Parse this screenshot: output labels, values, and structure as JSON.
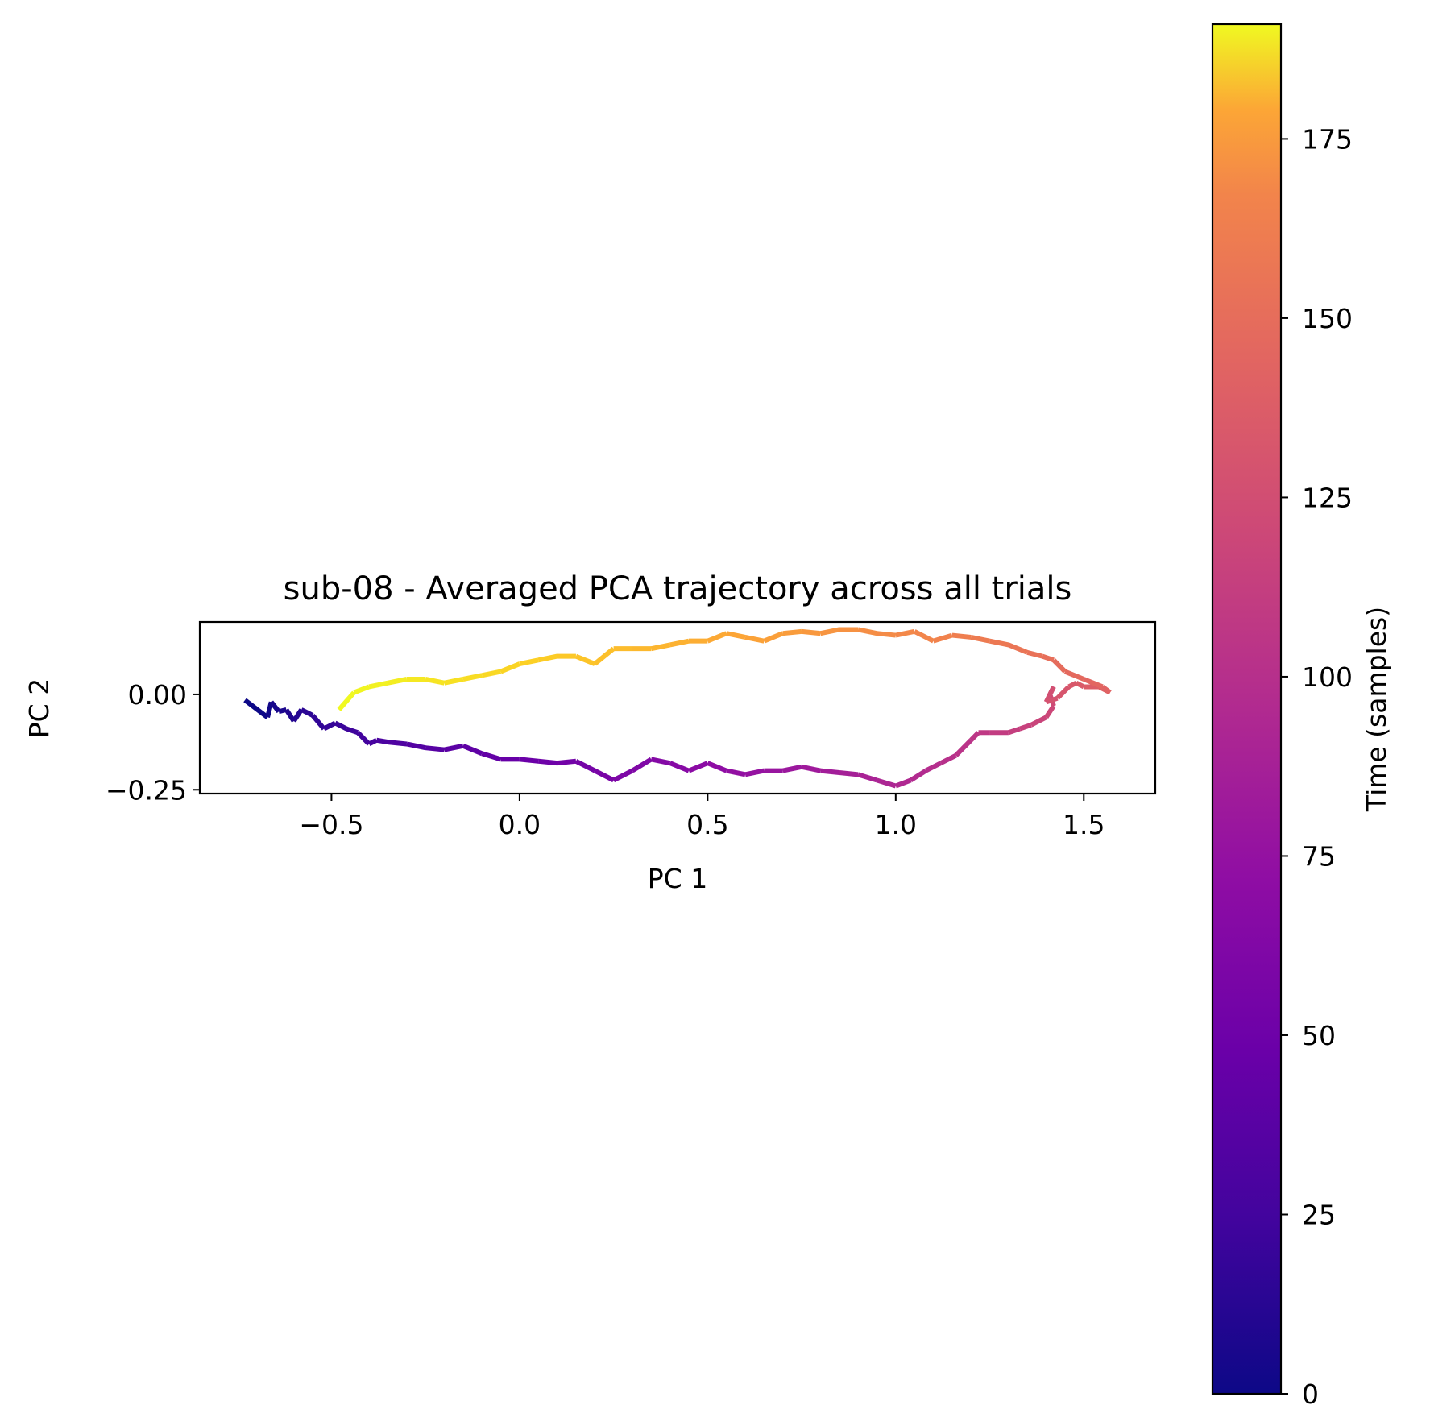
{
  "chart_data": {
    "type": "line",
    "title": "sub-08 - Averaged PCA trajectory across all trials",
    "xlabel": "PC 1",
    "ylabel": "PC 2",
    "xlim": [
      -0.85,
      1.69
    ],
    "ylim": [
      -0.26,
      0.19
    ],
    "xticks": [
      -0.5,
      0.0,
      0.5,
      1.0,
      1.5
    ],
    "xtick_labels": [
      "−0.5",
      "0.0",
      "0.5",
      "1.0",
      "1.5"
    ],
    "yticks": [
      0.0,
      -0.25
    ],
    "ytick_labels": [
      "0.00",
      "−0.25"
    ],
    "grid": false,
    "colormap": "plasma",
    "colorbar": {
      "label": "Time (samples)",
      "range": [
        0,
        191
      ],
      "ticks": [
        0,
        25,
        50,
        75,
        100,
        125,
        150,
        175
      ],
      "tick_labels": [
        "0",
        "25",
        "50",
        "75",
        "100",
        "125",
        "150",
        "175"
      ]
    },
    "series": [
      {
        "x": [
          -0.73,
          -0.67,
          -0.66,
          -0.64,
          -0.62,
          -0.6,
          -0.58,
          -0.55,
          -0.52,
          -0.49,
          -0.46,
          -0.43,
          -0.4,
          -0.38,
          -0.35,
          -0.3,
          -0.25,
          -0.2,
          -0.15,
          -0.1,
          -0.05,
          0.0,
          0.05,
          0.1,
          0.15,
          0.2,
          0.25,
          0.3,
          0.35,
          0.4,
          0.45,
          0.5,
          0.55,
          0.6,
          0.65,
          0.7,
          0.75,
          0.8,
          0.85,
          0.9,
          0.95,
          1.0,
          1.04,
          1.08,
          1.12,
          1.16,
          1.2,
          1.22,
          1.25,
          1.3,
          1.33,
          1.36,
          1.4,
          1.42,
          1.41,
          1.42,
          1.4,
          1.43,
          1.46,
          1.48,
          1.5,
          1.54,
          1.57,
          1.55,
          1.5,
          1.45,
          1.42,
          1.39,
          1.35,
          1.3,
          1.25,
          1.2,
          1.15,
          1.1,
          1.05,
          1.0,
          0.95,
          0.9,
          0.85,
          0.8,
          0.75,
          0.7,
          0.65,
          0.6,
          0.55,
          0.5,
          0.45,
          0.4,
          0.35,
          0.3,
          0.25,
          0.2,
          0.15,
          0.1,
          0.05,
          0.0,
          -0.05,
          -0.1,
          -0.15,
          -0.2,
          -0.25,
          -0.3,
          -0.35,
          -0.4,
          -0.44,
          -0.48
        ],
        "y": [
          -0.015,
          -0.06,
          -0.02,
          -0.045,
          -0.04,
          -0.07,
          -0.04,
          -0.055,
          -0.09,
          -0.075,
          -0.09,
          -0.1,
          -0.13,
          -0.12,
          -0.125,
          -0.13,
          -0.14,
          -0.145,
          -0.135,
          -0.155,
          -0.17,
          -0.17,
          -0.175,
          -0.18,
          -0.175,
          -0.2,
          -0.225,
          -0.2,
          -0.17,
          -0.18,
          -0.2,
          -0.18,
          -0.2,
          -0.21,
          -0.2,
          -0.2,
          -0.19,
          -0.2,
          -0.205,
          -0.21,
          -0.225,
          -0.24,
          -0.225,
          -0.2,
          -0.18,
          -0.16,
          -0.12,
          -0.1,
          -0.1,
          -0.1,
          -0.09,
          -0.08,
          -0.06,
          -0.03,
          0.0,
          0.02,
          -0.02,
          -0.01,
          0.02,
          0.03,
          0.02,
          0.02,
          0.005,
          0.02,
          0.04,
          0.06,
          0.09,
          0.1,
          0.11,
          0.13,
          0.14,
          0.15,
          0.155,
          0.14,
          0.165,
          0.155,
          0.16,
          0.17,
          0.17,
          0.16,
          0.165,
          0.16,
          0.14,
          0.15,
          0.16,
          0.14,
          0.14,
          0.13,
          0.12,
          0.12,
          0.12,
          0.08,
          0.1,
          0.1,
          0.09,
          0.08,
          0.06,
          0.05,
          0.04,
          0.03,
          0.04,
          0.04,
          0.03,
          0.02,
          0.005,
          -0.04
        ]
      }
    ]
  }
}
